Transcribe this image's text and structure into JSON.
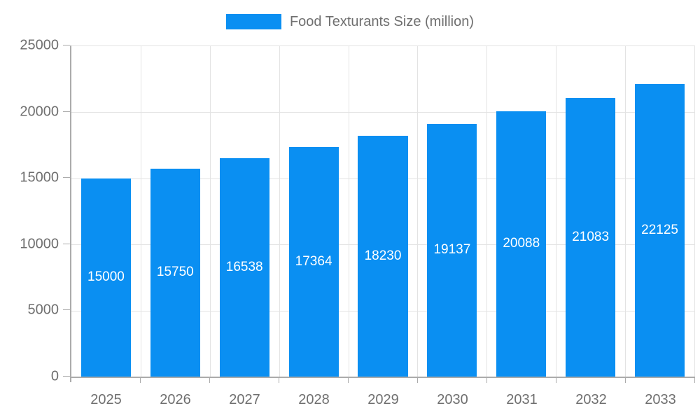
{
  "chart_data": {
    "type": "bar",
    "title": "",
    "legend_label": "Food Texturants Size (million)",
    "legend_position": "top",
    "categories": [
      "2025",
      "2026",
      "2027",
      "2028",
      "2029",
      "2030",
      "2031",
      "2032",
      "2033"
    ],
    "series": [
      {
        "name": "Food Texturants Size (million)",
        "values": [
          15000,
          15750,
          16538,
          17364,
          18230,
          19137,
          20088,
          21083,
          22125
        ]
      }
    ],
    "bar_value_labels": "inside-center",
    "xlabel": "",
    "ylabel": "",
    "ylim": [
      0,
      25000
    ],
    "y_ticks": [
      0,
      5000,
      10000,
      15000,
      20000,
      25000
    ],
    "grid": true,
    "colors": {
      "bar": "#0a8ff2",
      "grid": "#e3e3e3",
      "axis": "#ababab",
      "tick_label": "#6f6f6f",
      "legend_text": "#6f6f6f",
      "bar_label": "#ffffff",
      "background": "#ffffff"
    }
  }
}
